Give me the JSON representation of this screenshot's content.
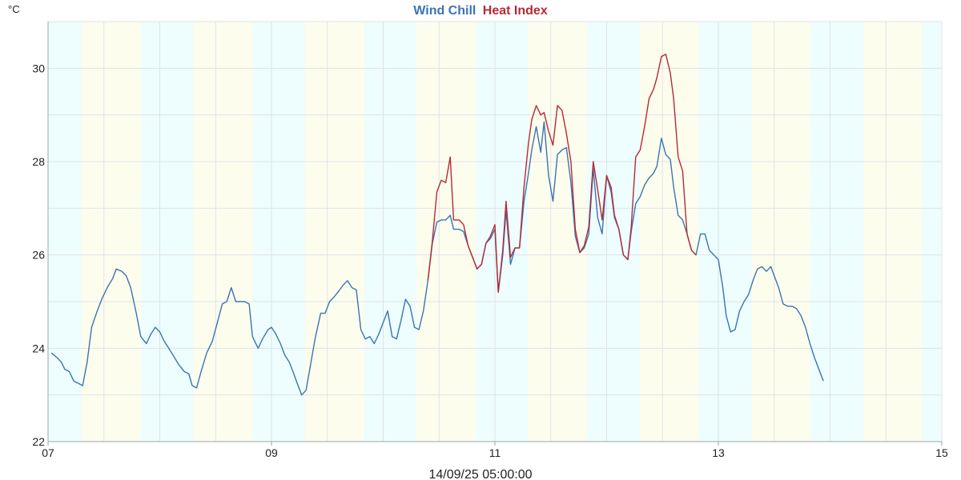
{
  "chart_data": {
    "type": "line",
    "title_parts": [
      {
        "text": "Wind Chill",
        "color": "#3a74b3"
      },
      {
        "text": "Heat Index",
        "color": "#b52a35"
      }
    ],
    "y_unit": "°C",
    "footer_label": "14/09/25 05:00:00",
    "xlim": [
      7,
      15
    ],
    "ylim": [
      22,
      31
    ],
    "x_ticks": [
      {
        "value": 7,
        "label": "07"
      },
      {
        "value": 9,
        "label": "09"
      },
      {
        "value": 11,
        "label": "11"
      },
      {
        "value": 13,
        "label": "13"
      },
      {
        "value": 15,
        "label": "15"
      }
    ],
    "y_ticks": [
      22,
      24,
      26,
      28,
      30
    ],
    "grid": true,
    "background_bands": [
      {
        "from": 7.0,
        "to": 7.3,
        "color": "#eefdfd"
      },
      {
        "from": 7.3,
        "to": 7.83,
        "color": "#fdfdee"
      },
      {
        "from": 7.83,
        "to": 8.3,
        "color": "#eefdfd"
      },
      {
        "from": 8.3,
        "to": 8.83,
        "color": "#fdfdee"
      },
      {
        "from": 8.83,
        "to": 9.3,
        "color": "#eefdfd"
      },
      {
        "from": 9.3,
        "to": 9.83,
        "color": "#fdfdee"
      },
      {
        "from": 9.83,
        "to": 10.3,
        "color": "#eefdfd"
      },
      {
        "from": 10.3,
        "to": 10.83,
        "color": "#fdfdee"
      },
      {
        "from": 10.83,
        "to": 11.3,
        "color": "#eefdfd"
      },
      {
        "from": 11.3,
        "to": 11.82,
        "color": "#fdfdee"
      },
      {
        "from": 11.82,
        "to": 12.3,
        "color": "#eefdfd"
      },
      {
        "from": 12.3,
        "to": 12.82,
        "color": "#fdfdee"
      },
      {
        "from": 12.82,
        "to": 13.3,
        "color": "#eefdfd"
      },
      {
        "from": 13.3,
        "to": 13.82,
        "color": "#fdfdee"
      },
      {
        "from": 13.82,
        "to": 14.3,
        "color": "#eefdfd"
      },
      {
        "from": 14.3,
        "to": 14.82,
        "color": "#fdfdee"
      },
      {
        "from": 14.82,
        "to": 15.0,
        "color": "#eefdfd"
      }
    ],
    "series": [
      {
        "name": "Wind Chill",
        "color": "#3a74b3",
        "points": [
          [
            7.03,
            23.9
          ],
          [
            7.08,
            23.8
          ],
          [
            7.12,
            23.7
          ],
          [
            7.15,
            23.55
          ],
          [
            7.19,
            23.5
          ],
          [
            7.23,
            23.3
          ],
          [
            7.27,
            23.25
          ],
          [
            7.31,
            23.2
          ],
          [
            7.35,
            23.7
          ],
          [
            7.39,
            24.45
          ],
          [
            7.44,
            24.8
          ],
          [
            7.48,
            25.05
          ],
          [
            7.53,
            25.3
          ],
          [
            7.58,
            25.5
          ],
          [
            7.61,
            25.7
          ],
          [
            7.66,
            25.65
          ],
          [
            7.7,
            25.55
          ],
          [
            7.74,
            25.3
          ],
          [
            7.79,
            24.75
          ],
          [
            7.83,
            24.25
          ],
          [
            7.88,
            24.1
          ],
          [
            7.92,
            24.3
          ],
          [
            7.96,
            24.45
          ],
          [
            8.0,
            24.35
          ],
          [
            8.04,
            24.15
          ],
          [
            8.08,
            24.0
          ],
          [
            8.12,
            23.85
          ],
          [
            8.17,
            23.65
          ],
          [
            8.22,
            23.5
          ],
          [
            8.26,
            23.45
          ],
          [
            8.29,
            23.2
          ],
          [
            8.33,
            23.15
          ],
          [
            8.37,
            23.5
          ],
          [
            8.42,
            23.9
          ],
          [
            8.47,
            24.15
          ],
          [
            8.51,
            24.5
          ],
          [
            8.56,
            24.95
          ],
          [
            8.6,
            25.0
          ],
          [
            8.64,
            25.3
          ],
          [
            8.68,
            25.0
          ],
          [
            8.72,
            25.0
          ],
          [
            8.76,
            25.0
          ],
          [
            8.8,
            24.95
          ],
          [
            8.83,
            24.25
          ],
          [
            8.88,
            24.0
          ],
          [
            8.92,
            24.2
          ],
          [
            8.97,
            24.4
          ],
          [
            9.0,
            24.45
          ],
          [
            9.04,
            24.3
          ],
          [
            9.08,
            24.1
          ],
          [
            9.12,
            23.85
          ],
          [
            9.16,
            23.7
          ],
          [
            9.2,
            23.45
          ],
          [
            9.23,
            23.25
          ],
          [
            9.27,
            23.0
          ],
          [
            9.31,
            23.1
          ],
          [
            9.35,
            23.65
          ],
          [
            9.39,
            24.2
          ],
          [
            9.44,
            24.75
          ],
          [
            9.48,
            24.75
          ],
          [
            9.52,
            25.0
          ],
          [
            9.56,
            25.1
          ],
          [
            9.61,
            25.25
          ],
          [
            9.64,
            25.35
          ],
          [
            9.68,
            25.45
          ],
          [
            9.72,
            25.3
          ],
          [
            9.76,
            25.25
          ],
          [
            9.8,
            24.4
          ],
          [
            9.84,
            24.2
          ],
          [
            9.88,
            24.25
          ],
          [
            9.92,
            24.1
          ],
          [
            9.96,
            24.3
          ],
          [
            10.0,
            24.55
          ],
          [
            10.04,
            24.8
          ],
          [
            10.08,
            24.25
          ],
          [
            10.12,
            24.2
          ],
          [
            10.16,
            24.6
          ],
          [
            10.2,
            25.05
          ],
          [
            10.24,
            24.9
          ],
          [
            10.28,
            24.45
          ],
          [
            10.32,
            24.4
          ],
          [
            10.36,
            24.8
          ],
          [
            10.4,
            25.45
          ],
          [
            10.44,
            26.25
          ],
          [
            10.48,
            26.7
          ],
          [
            10.52,
            26.75
          ],
          [
            10.56,
            26.75
          ],
          [
            10.6,
            26.85
          ],
          [
            10.63,
            26.55
          ],
          [
            10.68,
            26.55
          ],
          [
            10.72,
            26.5
          ],
          [
            10.76,
            26.2
          ],
          [
            10.8,
            25.95
          ],
          [
            10.84,
            25.7
          ],
          [
            10.88,
            25.8
          ],
          [
            10.92,
            26.25
          ],
          [
            10.96,
            26.35
          ],
          [
            11.0,
            26.55
          ],
          [
            11.03,
            25.2
          ],
          [
            11.07,
            26.0
          ],
          [
            11.1,
            26.95
          ],
          [
            11.14,
            25.8
          ],
          [
            11.18,
            26.15
          ],
          [
            11.22,
            26.15
          ],
          [
            11.26,
            27.15
          ],
          [
            11.3,
            27.75
          ],
          [
            11.33,
            28.25
          ],
          [
            11.37,
            28.75
          ],
          [
            11.41,
            28.2
          ],
          [
            11.44,
            28.85
          ],
          [
            11.48,
            27.7
          ],
          [
            11.52,
            27.15
          ],
          [
            11.56,
            28.15
          ],
          [
            11.6,
            28.25
          ],
          [
            11.64,
            28.3
          ],
          [
            11.68,
            27.55
          ],
          [
            11.72,
            26.4
          ],
          [
            11.76,
            26.05
          ],
          [
            11.8,
            26.15
          ],
          [
            11.84,
            26.45
          ],
          [
            11.88,
            27.85
          ],
          [
            11.92,
            26.8
          ],
          [
            11.96,
            26.45
          ],
          [
            12.0,
            27.7
          ],
          [
            12.04,
            27.35
          ],
          [
            12.07,
            26.8
          ],
          [
            12.11,
            26.55
          ],
          [
            12.15,
            26.0
          ],
          [
            12.19,
            25.9
          ],
          [
            12.22,
            26.5
          ],
          [
            12.26,
            27.1
          ],
          [
            12.3,
            27.25
          ],
          [
            12.34,
            27.5
          ],
          [
            12.38,
            27.65
          ],
          [
            12.42,
            27.75
          ],
          [
            12.45,
            27.9
          ],
          [
            12.49,
            28.5
          ],
          [
            12.53,
            28.15
          ],
          [
            12.57,
            28.05
          ],
          [
            12.6,
            27.45
          ],
          [
            12.64,
            26.85
          ],
          [
            12.68,
            26.75
          ],
          [
            12.72,
            26.45
          ],
          [
            12.76,
            26.1
          ],
          [
            12.8,
            26.0
          ],
          [
            12.84,
            26.45
          ],
          [
            12.88,
            26.45
          ],
          [
            12.92,
            26.1
          ],
          [
            12.96,
            26.0
          ],
          [
            13.0,
            25.9
          ],
          [
            13.04,
            25.3
          ],
          [
            13.07,
            24.7
          ],
          [
            13.11,
            24.35
          ],
          [
            13.15,
            24.4
          ],
          [
            13.19,
            24.8
          ],
          [
            13.23,
            25.0
          ],
          [
            13.27,
            25.15
          ],
          [
            13.31,
            25.45
          ],
          [
            13.35,
            25.7
          ],
          [
            13.39,
            25.75
          ],
          [
            13.43,
            25.65
          ],
          [
            13.47,
            25.75
          ],
          [
            13.5,
            25.55
          ],
          [
            13.54,
            25.3
          ],
          [
            13.58,
            24.95
          ],
          [
            13.62,
            24.9
          ],
          [
            13.66,
            24.9
          ],
          [
            13.7,
            24.85
          ],
          [
            13.74,
            24.7
          ],
          [
            13.78,
            24.45
          ],
          [
            13.82,
            24.1
          ],
          [
            13.86,
            23.8
          ],
          [
            13.9,
            23.55
          ],
          [
            13.94,
            23.3
          ]
        ]
      },
      {
        "name": "Heat Index",
        "color": "#b52a35",
        "points": [
          [
            10.4,
            25.45
          ],
          [
            10.44,
            26.3
          ],
          [
            10.48,
            27.35
          ],
          [
            10.52,
            27.6
          ],
          [
            10.56,
            27.55
          ],
          [
            10.6,
            28.1
          ],
          [
            10.63,
            26.75
          ],
          [
            10.68,
            26.75
          ],
          [
            10.72,
            26.65
          ],
          [
            10.76,
            26.2
          ],
          [
            10.8,
            25.95
          ],
          [
            10.84,
            25.7
          ],
          [
            10.88,
            25.8
          ],
          [
            10.92,
            26.25
          ],
          [
            10.96,
            26.4
          ],
          [
            11.0,
            26.65
          ],
          [
            11.03,
            25.2
          ],
          [
            11.07,
            26.1
          ],
          [
            11.1,
            27.15
          ],
          [
            11.14,
            25.95
          ],
          [
            11.18,
            26.15
          ],
          [
            11.22,
            26.15
          ],
          [
            11.26,
            27.45
          ],
          [
            11.3,
            28.4
          ],
          [
            11.33,
            28.9
          ],
          [
            11.37,
            29.2
          ],
          [
            11.41,
            29.0
          ],
          [
            11.44,
            29.05
          ],
          [
            11.48,
            28.65
          ],
          [
            11.52,
            28.35
          ],
          [
            11.56,
            29.2
          ],
          [
            11.6,
            29.1
          ],
          [
            11.64,
            28.6
          ],
          [
            11.68,
            28.0
          ],
          [
            11.72,
            26.55
          ],
          [
            11.76,
            26.05
          ],
          [
            11.8,
            26.2
          ],
          [
            11.84,
            26.6
          ],
          [
            11.88,
            28.0
          ],
          [
            11.92,
            27.4
          ],
          [
            11.96,
            26.75
          ],
          [
            12.0,
            27.7
          ],
          [
            12.04,
            27.45
          ],
          [
            12.07,
            26.85
          ],
          [
            12.11,
            26.55
          ],
          [
            12.15,
            26.0
          ],
          [
            12.19,
            25.9
          ],
          [
            12.22,
            26.6
          ],
          [
            12.26,
            28.1
          ],
          [
            12.3,
            28.25
          ],
          [
            12.34,
            28.75
          ],
          [
            12.38,
            29.35
          ],
          [
            12.42,
            29.55
          ],
          [
            12.45,
            29.8
          ],
          [
            12.49,
            30.25
          ],
          [
            12.53,
            30.3
          ],
          [
            12.57,
            29.9
          ],
          [
            12.6,
            29.35
          ],
          [
            12.64,
            28.1
          ],
          [
            12.68,
            27.8
          ],
          [
            12.72,
            26.45
          ],
          [
            12.76,
            26.1
          ],
          [
            12.8,
            26.0
          ]
        ]
      }
    ]
  }
}
